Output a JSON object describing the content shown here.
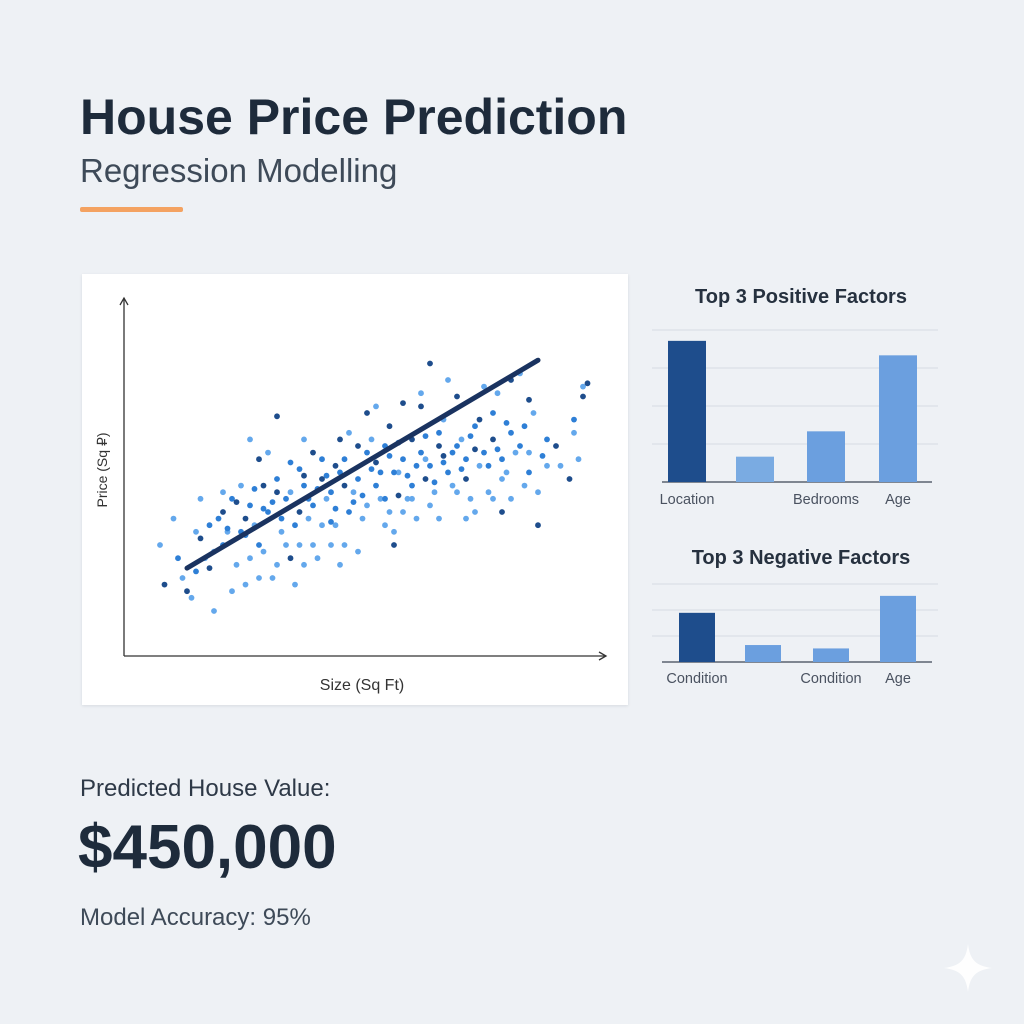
{
  "header": {
    "title": "House Price Prediction",
    "subtitle": "Regression Modelling"
  },
  "chart_data": [
    {
      "type": "scatter",
      "title": "",
      "xlabel": "Size (Sq Ft)",
      "ylabel": "Price (Sq ₽)",
      "xlim": [
        0,
        100
      ],
      "ylim": [
        0,
        100
      ],
      "grid": false,
      "trend_line": {
        "x": [
          10,
          88
        ],
        "y": [
          23,
          86
        ]
      },
      "points": {
        "dark": [
          [
            5,
            18
          ],
          [
            10,
            16
          ],
          [
            13,
            32
          ],
          [
            15,
            23
          ],
          [
            18,
            40
          ],
          [
            23,
            38
          ],
          [
            26,
            56
          ],
          [
            30,
            46
          ],
          [
            33,
            26
          ],
          [
            35,
            40
          ],
          [
            38,
            58
          ],
          [
            40,
            50
          ],
          [
            43,
            54
          ],
          [
            45,
            48
          ],
          [
            48,
            60
          ],
          [
            50,
            70
          ],
          [
            52,
            55
          ],
          [
            55,
            66
          ],
          [
            57,
            45
          ],
          [
            60,
            62
          ],
          [
            62,
            72
          ],
          [
            64,
            85
          ],
          [
            66,
            60
          ],
          [
            70,
            75
          ],
          [
            72,
            50
          ],
          [
            75,
            68
          ],
          [
            78,
            62
          ],
          [
            80,
            40
          ],
          [
            82,
            80
          ],
          [
            86,
            74
          ],
          [
            88,
            36
          ],
          [
            92,
            60
          ],
          [
            95,
            50
          ],
          [
            98,
            75
          ],
          [
            99,
            79
          ],
          [
            27,
            48
          ],
          [
            36,
            51
          ],
          [
            44,
            62
          ],
          [
            58,
            73
          ],
          [
            67,
            57
          ],
          [
            21,
            43
          ],
          [
            74,
            59
          ],
          [
            56,
            30
          ],
          [
            30,
            69
          ],
          [
            63,
            50
          ]
        ],
        "mid": [
          [
            8,
            26
          ],
          [
            12,
            22
          ],
          [
            15,
            36
          ],
          [
            18,
            30
          ],
          [
            20,
            44
          ],
          [
            22,
            34
          ],
          [
            24,
            42
          ],
          [
            26,
            30
          ],
          [
            28,
            40
          ],
          [
            30,
            50
          ],
          [
            32,
            44
          ],
          [
            34,
            36
          ],
          [
            36,
            48
          ],
          [
            38,
            42
          ],
          [
            40,
            56
          ],
          [
            42,
            46
          ],
          [
            44,
            52
          ],
          [
            46,
            40
          ],
          [
            48,
            50
          ],
          [
            50,
            58
          ],
          [
            52,
            48
          ],
          [
            54,
            60
          ],
          [
            56,
            52
          ],
          [
            58,
            56
          ],
          [
            60,
            48
          ],
          [
            62,
            58
          ],
          [
            64,
            54
          ],
          [
            66,
            64
          ],
          [
            68,
            52
          ],
          [
            70,
            60
          ],
          [
            72,
            56
          ],
          [
            74,
            66
          ],
          [
            76,
            58
          ],
          [
            78,
            70
          ],
          [
            80,
            56
          ],
          [
            82,
            64
          ],
          [
            84,
            60
          ],
          [
            86,
            52
          ],
          [
            90,
            62
          ],
          [
            96,
            68
          ],
          [
            17,
            38
          ],
          [
            25,
            47
          ],
          [
            33,
            55
          ],
          [
            41,
            51
          ],
          [
            49,
            45
          ],
          [
            57,
            61
          ],
          [
            65,
            49
          ],
          [
            73,
            63
          ],
          [
            81,
            67
          ],
          [
            89,
            57
          ],
          [
            31,
            38
          ],
          [
            37,
            44
          ],
          [
            45,
            56
          ],
          [
            53,
            52
          ],
          [
            61,
            54
          ],
          [
            69,
            58
          ],
          [
            77,
            54
          ],
          [
            85,
            66
          ],
          [
            23,
            33
          ],
          [
            39,
            47
          ],
          [
            47,
            43
          ],
          [
            55,
            57
          ],
          [
            63,
            63
          ],
          [
            71,
            53
          ],
          [
            79,
            59
          ],
          [
            29,
            43
          ],
          [
            43,
            41
          ],
          [
            51,
            53
          ],
          [
            59,
            51
          ],
          [
            67,
            55
          ],
          [
            35,
            53
          ],
          [
            19,
            35
          ],
          [
            27,
            41
          ],
          [
            42,
            37
          ],
          [
            54,
            44
          ]
        ],
        "light": [
          [
            4,
            30
          ],
          [
            9,
            20
          ],
          [
            11,
            14
          ],
          [
            14,
            26
          ],
          [
            16,
            10
          ],
          [
            19,
            34
          ],
          [
            21,
            24
          ],
          [
            23,
            18
          ],
          [
            25,
            36
          ],
          [
            27,
            28
          ],
          [
            29,
            20
          ],
          [
            31,
            34
          ],
          [
            33,
            46
          ],
          [
            35,
            30
          ],
          [
            37,
            38
          ],
          [
            39,
            26
          ],
          [
            41,
            44
          ],
          [
            43,
            36
          ],
          [
            45,
            30
          ],
          [
            47,
            46
          ],
          [
            49,
            38
          ],
          [
            51,
            62
          ],
          [
            53,
            44
          ],
          [
            55,
            40
          ],
          [
            57,
            52
          ],
          [
            59,
            44
          ],
          [
            61,
            38
          ],
          [
            63,
            56
          ],
          [
            65,
            46
          ],
          [
            67,
            68
          ],
          [
            69,
            48
          ],
          [
            71,
            62
          ],
          [
            73,
            44
          ],
          [
            75,
            54
          ],
          [
            77,
            46
          ],
          [
            79,
            76
          ],
          [
            81,
            52
          ],
          [
            83,
            58
          ],
          [
            85,
            48
          ],
          [
            87,
            70
          ],
          [
            93,
            54
          ],
          [
            96,
            64
          ],
          [
            97,
            56
          ],
          [
            98,
            78
          ],
          [
            24,
            62
          ],
          [
            28,
            58
          ],
          [
            36,
            62
          ],
          [
            46,
            64
          ],
          [
            52,
            72
          ],
          [
            62,
            76
          ],
          [
            68,
            80
          ],
          [
            76,
            78
          ],
          [
            84,
            82
          ],
          [
            12,
            34
          ],
          [
            18,
            46
          ],
          [
            22,
            48
          ],
          [
            26,
            20
          ],
          [
            30,
            24
          ],
          [
            34,
            18
          ],
          [
            38,
            30
          ],
          [
            44,
            24
          ],
          [
            48,
            28
          ],
          [
            54,
            36
          ],
          [
            58,
            40
          ],
          [
            66,
            38
          ],
          [
            74,
            40
          ],
          [
            82,
            44
          ],
          [
            88,
            46
          ],
          [
            13,
            44
          ],
          [
            7,
            38
          ],
          [
            16,
            28
          ],
          [
            20,
            16
          ],
          [
            32,
            30
          ],
          [
            40,
            36
          ],
          [
            50,
            42
          ],
          [
            60,
            44
          ],
          [
            70,
            46
          ],
          [
            80,
            50
          ],
          [
            90,
            54
          ],
          [
            24,
            26
          ],
          [
            36,
            24
          ],
          [
            42,
            30
          ],
          [
            56,
            34
          ],
          [
            64,
            42
          ],
          [
            72,
            38
          ],
          [
            78,
            44
          ],
          [
            86,
            58
          ]
        ]
      }
    },
    {
      "type": "bar",
      "title": "Top 3 Positive Factors",
      "categories": [
        "Location",
        "",
        "Bedrooms",
        "Age"
      ],
      "values": [
        3.9,
        0.7,
        1.4,
        3.5
      ],
      "ylim": [
        0,
        4.2
      ],
      "grid": true,
      "colors": [
        "#1e4d8c",
        "#7aabe2",
        "#6b9fdf",
        "#6b9fdf"
      ]
    },
    {
      "type": "bar",
      "title": "Top 3 Negative Factors",
      "categories": [
        "Condition",
        "",
        "Condition",
        "Age"
      ],
      "values": [
        1.45,
        0.5,
        0.4,
        1.95
      ],
      "ylim": [
        0,
        2.3
      ],
      "grid": true,
      "colors": [
        "#1e4d8c",
        "#6b9fdf",
        "#6b9fdf",
        "#6b9fdf"
      ]
    }
  ],
  "summary": {
    "predicted_label": "Predicted House Value:",
    "predicted_value": "$450,000",
    "accuracy": "Model Accuracy: 95%"
  },
  "colors": {
    "dark_blue": "#1e4d8c",
    "mid_blue": "#2e7fd6",
    "light_blue": "#64a8ec",
    "trend_line": "#1a3360",
    "accent": "#f4a261"
  }
}
